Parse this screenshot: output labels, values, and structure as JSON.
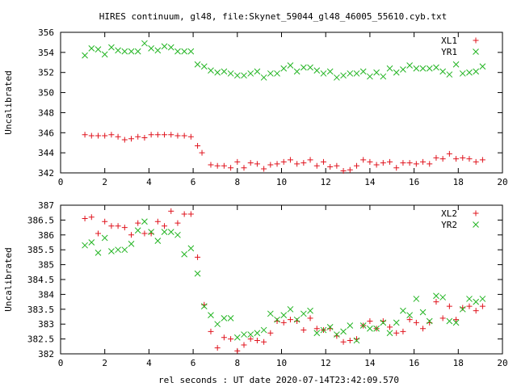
{
  "title": "HIRES continuum, gl48, file:Skynet_59044_gl48_46005_55610.cyb.txt",
  "xlabel": "rel seconds : UT date 2020-07-14T23:42:09.570",
  "colors": {
    "red": "#e0141e",
    "green": "#22b422"
  },
  "chart_data": [
    {
      "type": "scatter",
      "title": "HIRES continuum, gl48, file:Skynet_59044_gl48_46005_55610.cyb.txt",
      "xlabel": "",
      "ylabel": "Uncalibrated",
      "xlim": [
        0,
        20
      ],
      "ylim": [
        342,
        356
      ],
      "xticks": [
        0,
        2,
        4,
        6,
        8,
        10,
        12,
        14,
        16,
        18,
        20
      ],
      "yticks": [
        342,
        344,
        346,
        348,
        350,
        352,
        354,
        356
      ],
      "grid": false,
      "legend": "top-right",
      "series": [
        {
          "name": "XL1",
          "marker": "plus",
          "color": "#e0141e",
          "x": [
            1.1,
            1.4,
            1.7,
            2.0,
            2.3,
            2.6,
            2.9,
            3.2,
            3.5,
            3.8,
            4.1,
            4.4,
            4.7,
            5.0,
            5.3,
            5.6,
            5.9,
            6.2,
            6.4,
            6.8,
            7.1,
            7.4,
            7.7,
            8.0,
            8.3,
            8.6,
            8.9,
            9.2,
            9.5,
            9.8,
            10.1,
            10.4,
            10.7,
            11.0,
            11.3,
            11.6,
            11.9,
            12.2,
            12.5,
            12.8,
            13.1,
            13.4,
            13.7,
            14.0,
            14.3,
            14.6,
            14.9,
            15.2,
            15.5,
            15.8,
            16.1,
            16.4,
            16.7,
            17.0,
            17.3,
            17.6,
            17.9,
            18.2,
            18.5,
            18.8,
            19.1
          ],
          "y": [
            345.8,
            345.7,
            345.7,
            345.7,
            345.8,
            345.6,
            345.3,
            345.4,
            345.6,
            345.5,
            345.8,
            345.8,
            345.8,
            345.8,
            345.7,
            345.7,
            345.6,
            344.7,
            344.0,
            342.8,
            342.7,
            342.7,
            342.5,
            343.1,
            342.5,
            343.0,
            342.9,
            342.4,
            342.8,
            342.9,
            343.1,
            343.3,
            342.9,
            343.0,
            343.3,
            342.7,
            343.1,
            342.6,
            342.7,
            342.2,
            342.3,
            342.7,
            343.3,
            343.1,
            342.8,
            343.0,
            343.1,
            342.5,
            343.0,
            343.0,
            342.9,
            343.1,
            342.9,
            343.5,
            343.4,
            343.9,
            343.4,
            343.5,
            343.4,
            343.1,
            343.3
          ]
        },
        {
          "name": "YR1",
          "marker": "cross",
          "color": "#22b422",
          "x": [
            1.1,
            1.4,
            1.7,
            2.0,
            2.3,
            2.6,
            2.9,
            3.2,
            3.5,
            3.8,
            4.1,
            4.4,
            4.7,
            5.0,
            5.3,
            5.6,
            5.9,
            6.2,
            6.5,
            6.8,
            7.1,
            7.4,
            7.7,
            8.0,
            8.3,
            8.6,
            8.9,
            9.2,
            9.5,
            9.8,
            10.1,
            10.4,
            10.7,
            11.0,
            11.3,
            11.6,
            11.9,
            12.2,
            12.5,
            12.8,
            13.1,
            13.4,
            13.7,
            14.0,
            14.3,
            14.6,
            14.9,
            15.2,
            15.5,
            15.8,
            16.1,
            16.4,
            16.7,
            17.0,
            17.3,
            17.6,
            17.9,
            18.2,
            18.5,
            18.8,
            19.1
          ],
          "y": [
            353.7,
            354.4,
            354.3,
            353.8,
            354.5,
            354.2,
            354.1,
            354.1,
            354.1,
            354.9,
            354.4,
            354.2,
            354.6,
            354.5,
            354.1,
            354.1,
            354.1,
            352.8,
            352.6,
            352.2,
            352.0,
            352.1,
            351.9,
            351.7,
            351.7,
            351.9,
            352.1,
            351.5,
            351.9,
            351.9,
            352.4,
            352.7,
            352.1,
            352.5,
            352.5,
            352.2,
            351.9,
            352.1,
            351.5,
            351.7,
            351.9,
            351.9,
            352.1,
            351.6,
            352.0,
            351.6,
            352.4,
            352.0,
            352.3,
            352.7,
            352.4,
            352.4,
            352.4,
            352.5,
            352.1,
            351.8,
            352.8,
            351.9,
            352.0,
            352.1,
            352.6
          ]
        }
      ]
    },
    {
      "type": "scatter",
      "xlabel": "rel seconds : UT date 2020-07-14T23:42:09.570",
      "ylabel": "Uncalibrated",
      "xlim": [
        0,
        20
      ],
      "ylim": [
        382,
        387
      ],
      "xticks": [
        0,
        2,
        4,
        6,
        8,
        10,
        12,
        14,
        16,
        18,
        20
      ],
      "yticks": [
        382,
        382.5,
        383,
        383.5,
        384,
        384.5,
        385,
        385.5,
        386,
        386.5,
        387
      ],
      "grid": false,
      "legend": "top-right",
      "series": [
        {
          "name": "XL2",
          "marker": "plus",
          "color": "#e0141e",
          "x": [
            1.1,
            1.4,
            1.7,
            2.0,
            2.3,
            2.6,
            2.9,
            3.2,
            3.5,
            3.8,
            4.1,
            4.4,
            4.7,
            5.0,
            5.3,
            5.6,
            5.9,
            6.2,
            6.5,
            6.8,
            7.1,
            7.4,
            7.7,
            8.0,
            8.3,
            8.6,
            8.9,
            9.2,
            9.5,
            9.8,
            10.1,
            10.4,
            10.7,
            11.0,
            11.3,
            11.6,
            11.9,
            12.2,
            12.5,
            12.8,
            13.1,
            13.4,
            13.7,
            14.0,
            14.3,
            14.6,
            14.9,
            15.2,
            15.5,
            15.8,
            16.1,
            16.4,
            16.7,
            17.0,
            17.3,
            17.6,
            17.9,
            18.2,
            18.5,
            18.8,
            19.1
          ],
          "y": [
            386.55,
            386.6,
            386.05,
            386.45,
            386.3,
            386.3,
            386.25,
            386.0,
            386.4,
            386.05,
            386.05,
            386.45,
            386.3,
            386.8,
            386.4,
            386.7,
            386.7,
            385.25,
            383.65,
            382.75,
            382.2,
            382.55,
            382.5,
            382.1,
            382.3,
            382.5,
            382.45,
            382.4,
            382.7,
            383.1,
            383.05,
            383.15,
            383.1,
            382.8,
            383.2,
            382.85,
            382.8,
            382.85,
            382.6,
            382.4,
            382.45,
            382.5,
            382.95,
            383.1,
            382.85,
            383.1,
            382.9,
            382.7,
            382.75,
            383.15,
            383.05,
            382.85,
            383.05,
            383.75,
            383.2,
            383.6,
            383.15,
            383.55,
            383.6,
            383.45,
            383.6
          ]
        },
        {
          "name": "YR2",
          "marker": "cross",
          "color": "#22b422",
          "x": [
            1.1,
            1.4,
            1.7,
            2.0,
            2.3,
            2.6,
            2.9,
            3.2,
            3.5,
            3.8,
            4.1,
            4.4,
            4.7,
            5.0,
            5.3,
            5.6,
            5.9,
            6.2,
            6.5,
            6.8,
            7.1,
            7.4,
            7.7,
            8.0,
            8.3,
            8.6,
            8.9,
            9.2,
            9.5,
            9.8,
            10.1,
            10.4,
            10.7,
            11.0,
            11.3,
            11.6,
            11.9,
            12.2,
            12.5,
            12.8,
            13.1,
            13.4,
            13.7,
            14.0,
            14.3,
            14.6,
            14.9,
            15.2,
            15.5,
            15.8,
            16.1,
            16.4,
            16.7,
            17.0,
            17.3,
            17.6,
            17.9,
            18.2,
            18.5,
            18.8,
            19.1
          ],
          "y": [
            385.65,
            385.75,
            385.4,
            385.9,
            385.45,
            385.5,
            385.5,
            385.7,
            386.15,
            386.45,
            386.1,
            385.8,
            386.1,
            386.1,
            386.0,
            385.35,
            385.55,
            384.7,
            383.6,
            383.3,
            383.0,
            383.2,
            383.2,
            382.55,
            382.65,
            382.65,
            382.7,
            382.8,
            383.35,
            383.15,
            383.3,
            383.5,
            383.15,
            383.35,
            383.45,
            382.7,
            382.8,
            382.9,
            382.65,
            382.75,
            382.95,
            382.45,
            382.95,
            382.85,
            382.85,
            383.05,
            382.7,
            383.05,
            383.45,
            383.3,
            383.85,
            383.4,
            383.1,
            383.95,
            383.9,
            383.1,
            383.05,
            383.5,
            383.85,
            383.75,
            383.85
          ]
        }
      ]
    }
  ]
}
